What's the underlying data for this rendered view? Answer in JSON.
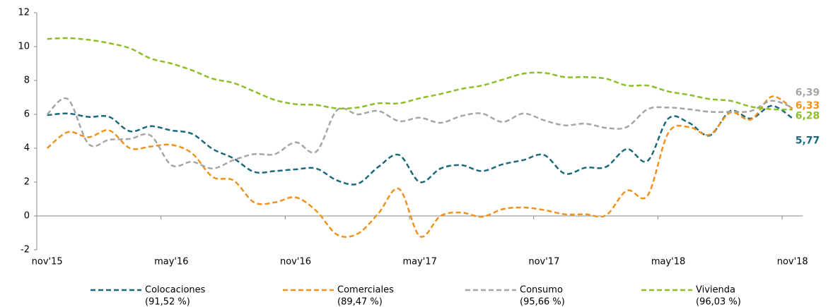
{
  "chart_data": {
    "type": "line",
    "categories": [
      "nov'15",
      null,
      null,
      null,
      null,
      null,
      "may'16",
      null,
      null,
      null,
      null,
      null,
      "nov'16",
      null,
      null,
      null,
      null,
      null,
      "may'17",
      null,
      null,
      null,
      null,
      null,
      "nov'17",
      null,
      null,
      null,
      null,
      null,
      "may'18",
      null,
      null,
      null,
      null,
      null,
      "nov'18"
    ],
    "ylim": [
      -2,
      12
    ],
    "yticks": [
      -2,
      0,
      2,
      4,
      6,
      8,
      10,
      12
    ],
    "grid": false,
    "series": [
      {
        "name": "Colocaciones",
        "share": "(91,52 %)",
        "color": "#1b6a7c",
        "end_label": "5,77",
        "values": [
          5.95,
          6.05,
          5.85,
          5.85,
          5.0,
          5.3,
          5.05,
          4.85,
          3.95,
          3.4,
          2.6,
          2.65,
          2.75,
          2.8,
          2.1,
          1.9,
          2.9,
          3.6,
          2.0,
          2.8,
          3.0,
          2.65,
          3.05,
          3.3,
          3.6,
          2.5,
          2.85,
          2.9,
          3.95,
          3.25,
          5.75,
          5.5,
          4.75,
          6.2,
          5.75,
          6.5,
          5.77
        ]
      },
      {
        "name": "Comerciales",
        "share": "(89,47 %)",
        "color": "#f0921e",
        "end_label": "6,33",
        "values": [
          4.0,
          4.95,
          4.65,
          5.05,
          4.0,
          4.1,
          4.2,
          3.7,
          2.3,
          2.1,
          0.8,
          0.8,
          1.1,
          0.3,
          -1.1,
          -1.05,
          0.15,
          1.6,
          -1.2,
          0.0,
          0.2,
          -0.05,
          0.4,
          0.5,
          0.35,
          0.1,
          0.1,
          0.05,
          1.5,
          1.2,
          4.9,
          5.25,
          4.8,
          6.1,
          5.7,
          7.05,
          6.33
        ]
      },
      {
        "name": "Consumo",
        "share": "(95,66 %)",
        "color": "#a6a6a6",
        "end_label": "6,39",
        "values": [
          6.0,
          6.9,
          4.25,
          4.5,
          4.55,
          4.75,
          3.0,
          3.2,
          2.8,
          3.3,
          3.65,
          3.65,
          4.35,
          3.8,
          6.25,
          6.0,
          6.2,
          5.6,
          5.8,
          5.5,
          5.9,
          6.05,
          5.55,
          6.05,
          5.65,
          5.35,
          5.45,
          5.2,
          5.25,
          6.3,
          6.4,
          6.3,
          6.15,
          6.15,
          6.2,
          6.8,
          6.39
        ]
      },
      {
        "name": "Vivienda",
        "share": "(96,03 %)",
        "color": "#8cbf26",
        "end_label": "6,28",
        "values": [
          10.45,
          10.5,
          10.4,
          10.2,
          9.9,
          9.3,
          9.0,
          8.6,
          8.1,
          7.85,
          7.35,
          6.85,
          6.6,
          6.55,
          6.35,
          6.4,
          6.65,
          6.65,
          6.95,
          7.2,
          7.5,
          7.7,
          8.05,
          8.4,
          8.45,
          8.2,
          8.2,
          8.1,
          7.7,
          7.7,
          7.35,
          7.15,
          6.9,
          6.8,
          6.45,
          6.3,
          6.28
        ]
      }
    ]
  }
}
